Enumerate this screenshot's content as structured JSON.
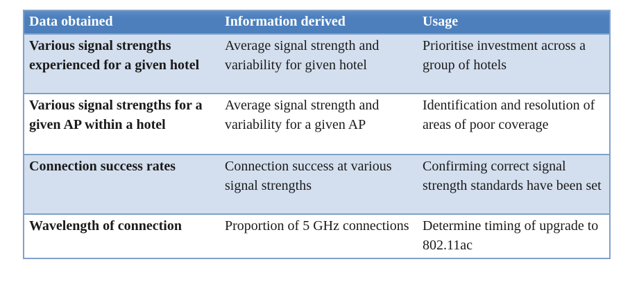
{
  "colors": {
    "header_bg": "#4C7FBC",
    "header_bg_top": "#5E8CC4",
    "header_text": "#FFFFFF",
    "band_color": "#D3DFEE",
    "border_color": "#7FA0CB"
  },
  "table": {
    "headers": [
      "Data obtained",
      "Information derived",
      "Usage"
    ],
    "rows": [
      {
        "cells": [
          "Various signal strengths experienced for a given hotel",
          "Average signal strength and variability for given hotel",
          "Prioritise investment across a group of hotels"
        ]
      },
      {
        "cells": [
          "Various signal strengths for a given AP within a hotel",
          "Average signal strength and variability for a given AP",
          "Identification and resolution of areas of poor coverage"
        ]
      },
      {
        "cells": [
          "Connection success rates",
          "Connection success at various signal strengths",
          "Confirming correct signal strength standards have been set"
        ]
      },
      {
        "cells": [
          "Wavelength of connection",
          "Proportion of 5 GHz connections",
          "Determine timing of upgrade to 802.11ac"
        ]
      }
    ]
  }
}
